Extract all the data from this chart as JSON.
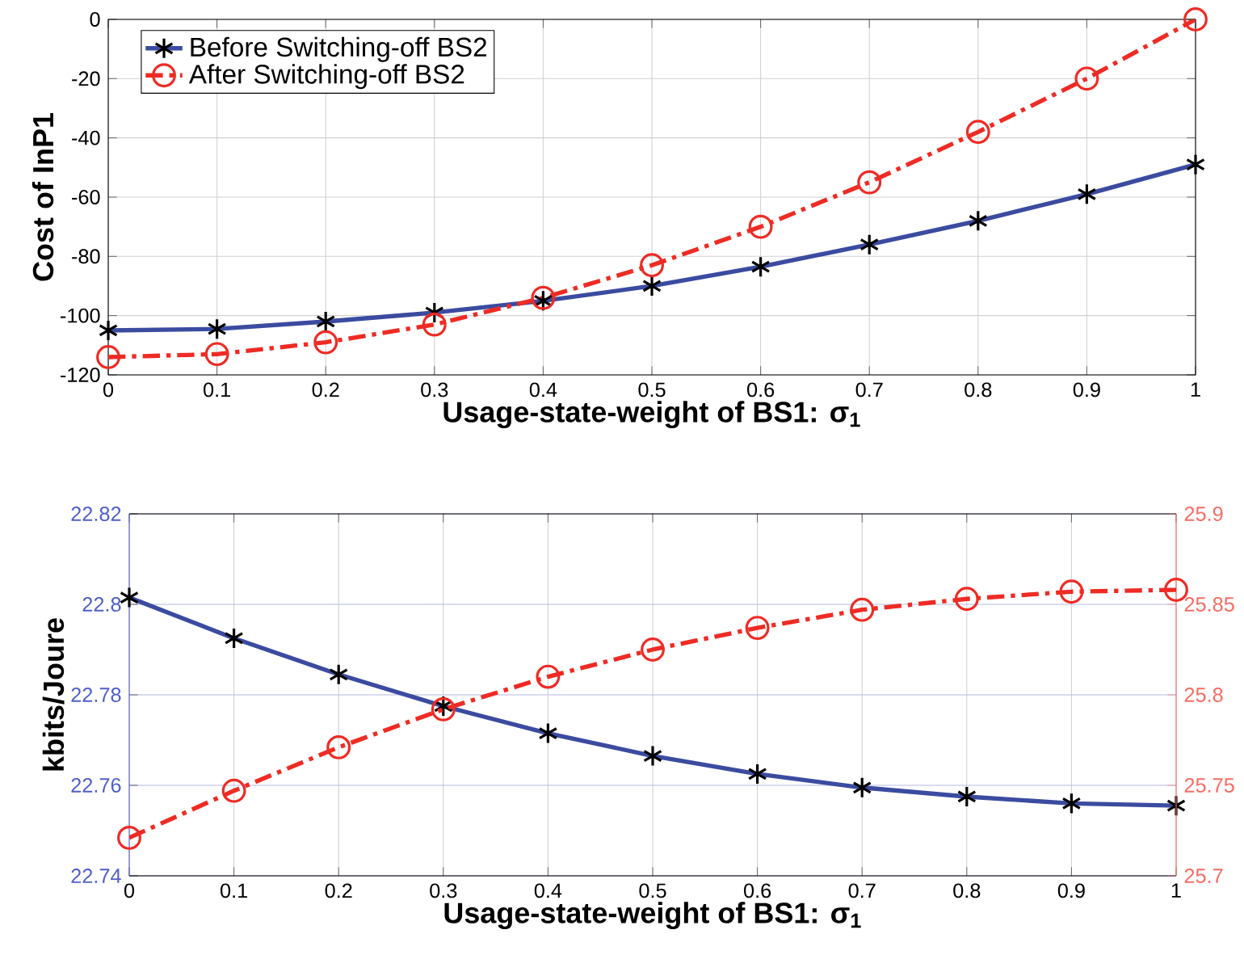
{
  "chart_data": [
    {
      "type": "line",
      "xlabel": "Usage-state-weight of BS1: σ$_{1}$",
      "ylabel": "Cost of InP1",
      "x": [
        0,
        0.1,
        0.2,
        0.3,
        0.4,
        0.5,
        0.6,
        0.7,
        0.8,
        0.9,
        1
      ],
      "xlim": [
        0,
        1
      ],
      "xticks": [
        0,
        0.1,
        0.2,
        0.3,
        0.4,
        0.5,
        0.6,
        0.7,
        0.8,
        0.9,
        1
      ],
      "ylim": [
        -120,
        0
      ],
      "yticks": [
        -120,
        -100,
        -80,
        -60,
        -40,
        -20,
        0
      ],
      "grid": true,
      "legend": "top left",
      "series": [
        {
          "name": "Before Switching-off BS2",
          "color": "#3b4ba0",
          "marker": "cross",
          "line_style": "solid",
          "values": [
            -105,
            -104.5,
            -102,
            -99,
            -95,
            -90,
            -83.5,
            -76,
            -68,
            -59,
            -49
          ]
        },
        {
          "name": "After Switching-off BS2",
          "color": "#ee2b24",
          "marker": "circle",
          "line_style": "dashed",
          "values": [
            -114,
            -113,
            -109,
            -103,
            -94,
            -83,
            -70,
            -55,
            -38,
            -20,
            0
          ]
        }
      ]
    },
    {
      "type": "line",
      "xlabel": "Usage-state-weight of BS1: σ$_{1}$",
      "ylabel": "kbits/Joure",
      "x": [
        0,
        0.1,
        0.2,
        0.3,
        0.4,
        0.5,
        0.6,
        0.7,
        0.8,
        0.9,
        1
      ],
      "xlim": [
        0,
        1
      ],
      "xticks": [
        0,
        0.1,
        0.2,
        0.3,
        0.4,
        0.5,
        0.6,
        0.7,
        0.8,
        0.9,
        1
      ],
      "ylim": [
        22.74,
        22.82
      ],
      "yticks": [
        22.74,
        22.76,
        22.78,
        22.8,
        22.82
      ],
      "y2lim": [
        25.7,
        25.9
      ],
      "y2ticks": [
        25.7,
        25.75,
        25.8,
        25.85,
        25.9
      ],
      "grid": true,
      "series": [
        {
          "color": "#3b4ba0",
          "marker": "cross",
          "line_style": "solid",
          "values": [
            22.8015,
            22.7925,
            22.7845,
            22.7775,
            22.7715,
            22.7665,
            22.7625,
            22.7595,
            22.7575,
            22.756,
            22.7555
          ]
        },
        {
          "color": "#ee2b24",
          "marker": "circle",
          "line_style": "dashed",
          "axis": "y2",
          "values": [
            25.721,
            25.747,
            25.771,
            25.792,
            25.81,
            25.825,
            25.837,
            25.847,
            25.853,
            25.857,
            25.858
          ]
        }
      ]
    }
  ]
}
